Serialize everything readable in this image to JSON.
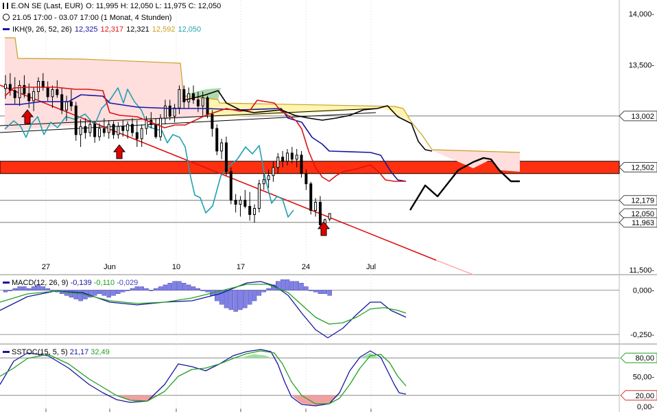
{
  "header": {
    "instrument": "E.ON SE (Last, EUR)",
    "ohlc": "O: 11,995  H: 12,050  L: 11,975  C: 12,050",
    "period": "21.05 17:00 - 03.07 17:00 (1 Monat, 4 Stunden)",
    "ikh_label": "IKH(9, 26, 52, 26)",
    "ikh_values": [
      {
        "text": "12,325",
        "color": "#1515a0"
      },
      {
        "text": "12,317",
        "color": "#e01010"
      },
      {
        "text": "12,321",
        "color": "#000000"
      },
      {
        "text": "12,592",
        "color": "#c8a020"
      },
      {
        "text": "12,050",
        "color": "#20a0b0"
      }
    ]
  },
  "macd_header": {
    "label": "MACD(12, 26, 9)",
    "values": [
      {
        "text": "-0,139",
        "color": "#1515a0"
      },
      {
        "text": "-0,110",
        "color": "#20a020"
      },
      {
        "text": "-0,029",
        "color": "#4040c0"
      }
    ]
  },
  "sstoc_header": {
    "label": "SSTOC(15, 5, 5)",
    "values": [
      {
        "text": "21,17",
        "color": "#1515a0"
      },
      {
        "text": "32,49",
        "color": "#20a020"
      }
    ]
  },
  "colors": {
    "tenkan": "#1515a0",
    "kijun": "#e01010",
    "chikou": "#20a0b0",
    "senkou_b": "#c8a020",
    "cloud_bear": "#ffdede",
    "cloud_bull": "#fff4b0",
    "resistance_zone": "#ff3010",
    "trendline": "#e01010",
    "arrow": "#e00000",
    "macd_hist": "#8080e8",
    "signal_green": "#20a020"
  },
  "chart_data": [
    {
      "type": "candlestick",
      "panel": "price",
      "y_ticks": [
        "14,000-",
        "13,500-",
        "13,002",
        "12,502",
        "12,179",
        "12,050",
        "11,963",
        "11,500-"
      ],
      "ylim": [
        11.5,
        14.0
      ],
      "x_ticks": [
        "27",
        "Jun",
        "10",
        "17",
        "24",
        "Jul"
      ],
      "horizontal_levels": [
        13.002,
        12.502,
        12.179,
        11.963
      ],
      "resistance_zone": [
        12.44,
        12.56
      ],
      "last_price": 12.05,
      "ohlc": [
        [
          13.27,
          13.4,
          13.17,
          13.31
        ],
        [
          13.31,
          13.42,
          13.2,
          13.25
        ],
        [
          13.25,
          13.38,
          13.12,
          13.18
        ],
        [
          13.18,
          13.35,
          13.1,
          13.3
        ],
        [
          13.3,
          13.4,
          13.18,
          13.22
        ],
        [
          13.22,
          13.32,
          13.08,
          13.15
        ],
        [
          13.15,
          13.28,
          13.05,
          13.24
        ],
        [
          13.24,
          13.38,
          13.16,
          13.34
        ],
        [
          13.34,
          13.42,
          13.25,
          13.28
        ],
        [
          13.28,
          13.34,
          13.15,
          13.19
        ],
        [
          13.19,
          13.3,
          13.08,
          13.26
        ],
        [
          13.26,
          13.35,
          13.18,
          13.21
        ],
        [
          13.21,
          13.28,
          13.02,
          13.06
        ],
        [
          13.06,
          13.2,
          12.95,
          13.14
        ],
        [
          13.14,
          13.26,
          13.05,
          13.1
        ],
        [
          13.1,
          13.14,
          12.76,
          12.82
        ],
        [
          12.82,
          12.97,
          12.7,
          12.9
        ],
        [
          12.9,
          12.98,
          12.78,
          12.84
        ],
        [
          12.84,
          12.96,
          12.8,
          12.92
        ],
        [
          12.92,
          12.95,
          12.74,
          12.8
        ],
        [
          12.8,
          12.93,
          12.76,
          12.88
        ],
        [
          12.88,
          12.98,
          12.8,
          12.84
        ],
        [
          12.84,
          12.96,
          12.78,
          12.92
        ],
        [
          12.92,
          12.95,
          12.78,
          12.82
        ],
        [
          12.82,
          12.94,
          12.78,
          12.9
        ],
        [
          12.9,
          12.96,
          12.8,
          12.86
        ],
        [
          12.86,
          12.95,
          12.78,
          12.92
        ],
        [
          12.92,
          12.98,
          12.8,
          12.84
        ],
        [
          12.84,
          12.96,
          12.7,
          12.78
        ],
        [
          12.78,
          12.92,
          12.7,
          12.88
        ],
        [
          12.88,
          13.0,
          12.82,
          12.96
        ],
        [
          12.96,
          13.04,
          12.88,
          12.92
        ],
        [
          12.92,
          12.98,
          12.78,
          12.8
        ],
        [
          12.8,
          13.02,
          12.76,
          12.98
        ],
        [
          12.98,
          13.16,
          12.92,
          13.1
        ],
        [
          13.1,
          13.16,
          12.96,
          13.0
        ],
        [
          13.0,
          13.12,
          12.94,
          13.08
        ],
        [
          13.08,
          13.3,
          13.02,
          13.26
        ],
        [
          13.26,
          13.3,
          13.08,
          13.14
        ],
        [
          13.14,
          13.28,
          13.08,
          13.22
        ],
        [
          13.22,
          13.3,
          13.12,
          13.16
        ],
        [
          13.16,
          13.24,
          13.04,
          13.1
        ],
        [
          13.1,
          13.24,
          13.0,
          13.18
        ],
        [
          13.18,
          13.2,
          12.98,
          13.02
        ],
        [
          13.02,
          13.06,
          12.8,
          12.88
        ],
        [
          12.88,
          12.92,
          12.62,
          12.66
        ],
        [
          12.66,
          12.78,
          12.58,
          12.74
        ],
        [
          12.74,
          12.8,
          12.42,
          12.46
        ],
        [
          12.46,
          12.5,
          12.14,
          12.18
        ],
        [
          12.18,
          12.24,
          12.06,
          12.14
        ],
        [
          12.14,
          12.22,
          12.02,
          12.18
        ],
        [
          12.18,
          12.28,
          12.1,
          12.12
        ],
        [
          12.12,
          12.26,
          11.98,
          12.04
        ],
        [
          12.04,
          12.14,
          11.96,
          12.1
        ],
        [
          12.1,
          12.38,
          12.06,
          12.34
        ],
        [
          12.34,
          12.44,
          12.28,
          12.38
        ],
        [
          12.38,
          12.48,
          12.3,
          12.42
        ],
        [
          12.42,
          12.56,
          12.36,
          12.5
        ],
        [
          12.5,
          12.64,
          12.44,
          12.6
        ],
        [
          12.6,
          12.66,
          12.5,
          12.56
        ],
        [
          12.56,
          12.68,
          12.52,
          12.64
        ],
        [
          12.64,
          12.7,
          12.54,
          12.58
        ],
        [
          12.58,
          12.68,
          12.5,
          12.62
        ],
        [
          12.62,
          12.66,
          12.4,
          12.44
        ],
        [
          12.44,
          12.48,
          12.28,
          12.34
        ],
        [
          12.34,
          12.36,
          12.04,
          12.08
        ],
        [
          12.08,
          12.2,
          12.02,
          12.16
        ],
        [
          12.16,
          12.22,
          11.9,
          11.94
        ],
        [
          11.94,
          12.0,
          11.92,
          11.99
        ],
        [
          11.995,
          12.05,
          11.975,
          12.05
        ]
      ]
    },
    {
      "type": "line",
      "panel": "macd",
      "y_ticks": [
        "0,000-",
        "-0,250-"
      ],
      "ylim": [
        -0.3,
        0.08
      ],
      "series_values": [
        "-0,139",
        "-0,110",
        "-0,029"
      ]
    },
    {
      "type": "line",
      "panel": "sstoc",
      "y_ticks": [
        "80,00",
        "50,00-",
        "20,00",
        "0,00-"
      ],
      "ylim": [
        0,
        100
      ],
      "levels": [
        80,
        20
      ],
      "series_values": [
        "21,17",
        "32,49"
      ]
    }
  ]
}
